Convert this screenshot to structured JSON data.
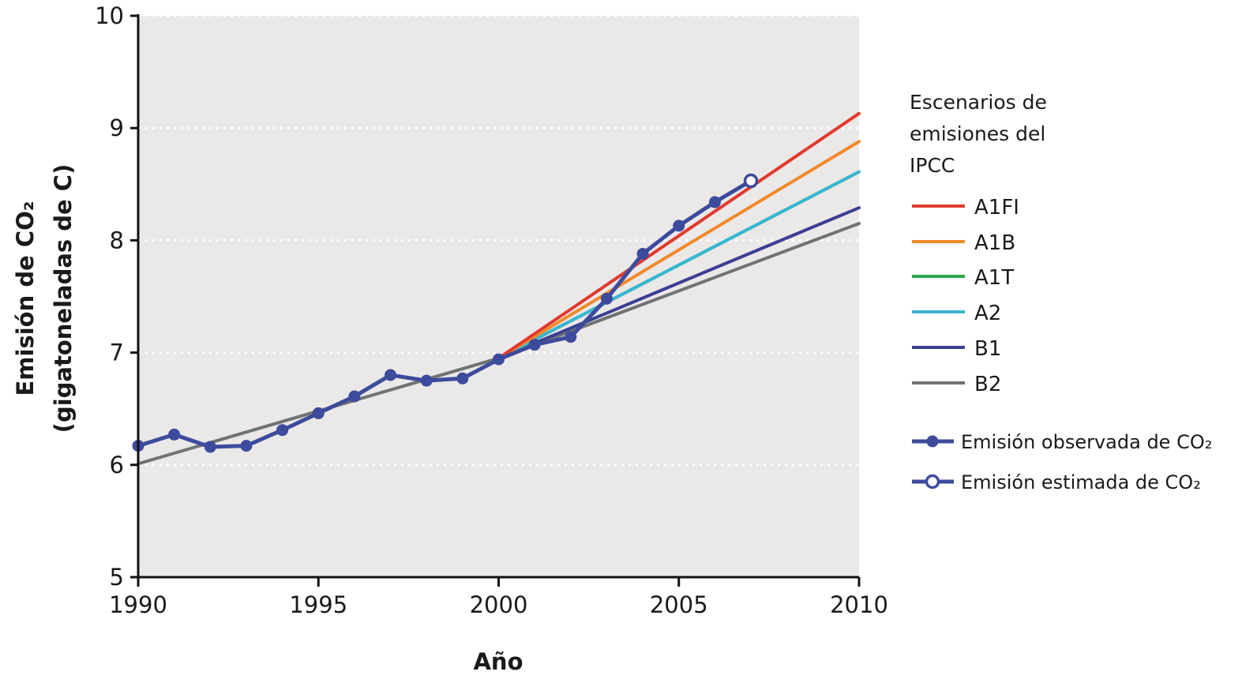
{
  "chart_data": {
    "type": "line",
    "title": "",
    "xlabel": "Año",
    "ylabel": "Emisión de CO₂",
    "ylabel_line2": "(gigatoneladas de C)",
    "xlim": [
      1990,
      2010
    ],
    "ylim": [
      5,
      10
    ],
    "x_ticks": [
      1990,
      1995,
      2000,
      2005,
      2010
    ],
    "x_tick_labels": [
      "1990",
      "1995",
      "2000",
      "2005",
      "2010"
    ],
    "y_ticks": [
      5,
      6,
      7,
      8,
      9,
      10
    ],
    "y_tick_labels": [
      "5",
      "6",
      "7",
      "8",
      "9",
      "10"
    ],
    "grid": "horizontal dotted white",
    "plot_background": "#ebe8e8",
    "legend": {
      "placement": "right",
      "title_lines": [
        "Escenarios de",
        "emisiones del",
        "IPCC"
      ]
    },
    "scenarios": [
      {
        "name": "A1FI",
        "color": "#e03a2f",
        "x": [
          2000,
          2010
        ],
        "y": [
          6.95,
          9.13
        ]
      },
      {
        "name": "A1B",
        "color": "#f08a2c",
        "x": [
          2000,
          2010
        ],
        "y": [
          6.95,
          8.88
        ]
      },
      {
        "name": "A1T",
        "color": "#2ea84a",
        "x": [
          2000,
          2010
        ],
        "y": [
          6.95,
          8.61
        ]
      },
      {
        "name": "A2",
        "color": "#38b6d2",
        "x": [
          2000,
          2010
        ],
        "y": [
          6.95,
          8.61
        ]
      },
      {
        "name": "B1",
        "color": "#3a3f94",
        "x": [
          2000,
          2010
        ],
        "y": [
          6.95,
          8.29
        ]
      },
      {
        "name": "B2",
        "color": "#6f7472",
        "x": [
          1990,
          2000,
          2010
        ],
        "y": [
          6.01,
          6.95,
          8.15
        ]
      }
    ],
    "observed": {
      "name": "Emisión observada de CO₂",
      "color": "#3d4b9c",
      "x": [
        1990,
        1991,
        1992,
        1993,
        1994,
        1995,
        1996,
        1997,
        1998,
        1999,
        2000,
        2001,
        2002,
        2003,
        2004,
        2005,
        2006
      ],
      "y": [
        6.17,
        6.27,
        6.16,
        6.17,
        6.31,
        6.46,
        6.61,
        6.8,
        6.75,
        6.77,
        6.94,
        7.07,
        7.14,
        7.48,
        7.88,
        8.13,
        8.34
      ]
    },
    "estimated": {
      "name": "Emisión estimada de CO₂",
      "color": "#3d4b9c",
      "x": [
        2007
      ],
      "y": [
        8.53
      ]
    }
  }
}
